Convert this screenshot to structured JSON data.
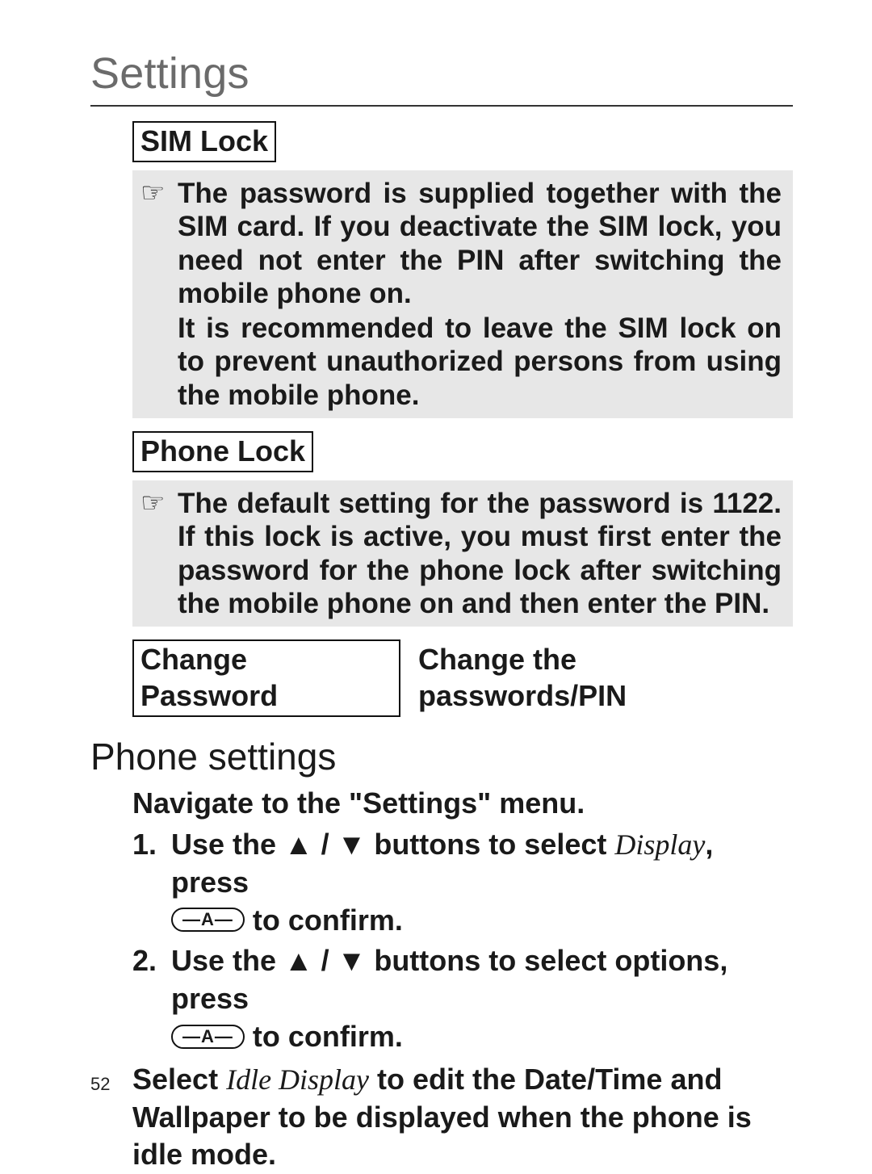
{
  "page": {
    "title": "Settings",
    "number": "52"
  },
  "sim_lock": {
    "label": "SIM Lock",
    "note_p1": "The password is supplied together with the SIM card. If you deactivate the SIM lock, you need not enter the PIN after switching the mobile phone on.",
    "note_p2": "It is recommended to leave the SIM lock on to prevent unauthorized persons from using the mobile phone."
  },
  "phone_lock": {
    "label": "Phone Lock",
    "note": "The default setting for the password is 1122. If this lock is active, you must first enter the password for the phone lock after switching the mobile phone on and then enter the PIN."
  },
  "change_password": {
    "label": "Change Password",
    "desc": "Change the passwords/PIN"
  },
  "phone_settings": {
    "title": "Phone settings",
    "intro": "Navigate to the \"Settings\" menu.",
    "step1_a": "Use the ",
    "step1_arrows": "▲ / ▼",
    "step1_b": " buttons to select ",
    "step1_target": "Display",
    "step1_c": ", press",
    "step1_key": "—A—",
    "step1_d": " to confirm.",
    "step2_a": "Use the ",
    "step2_arrows": "▲ / ▼",
    "step2_b": " buttons to select options, press",
    "step2_key": "—A—",
    "step2_d": " to confirm.",
    "outro_a": "Select ",
    "outro_target": "Idle Display",
    "outro_b": " to edit the Date/Time and Wallpaper to be displayed when the phone is idle mode."
  },
  "icons": {
    "hand": "☞"
  },
  "step_numbers": {
    "one": "1.",
    "two": "2."
  }
}
